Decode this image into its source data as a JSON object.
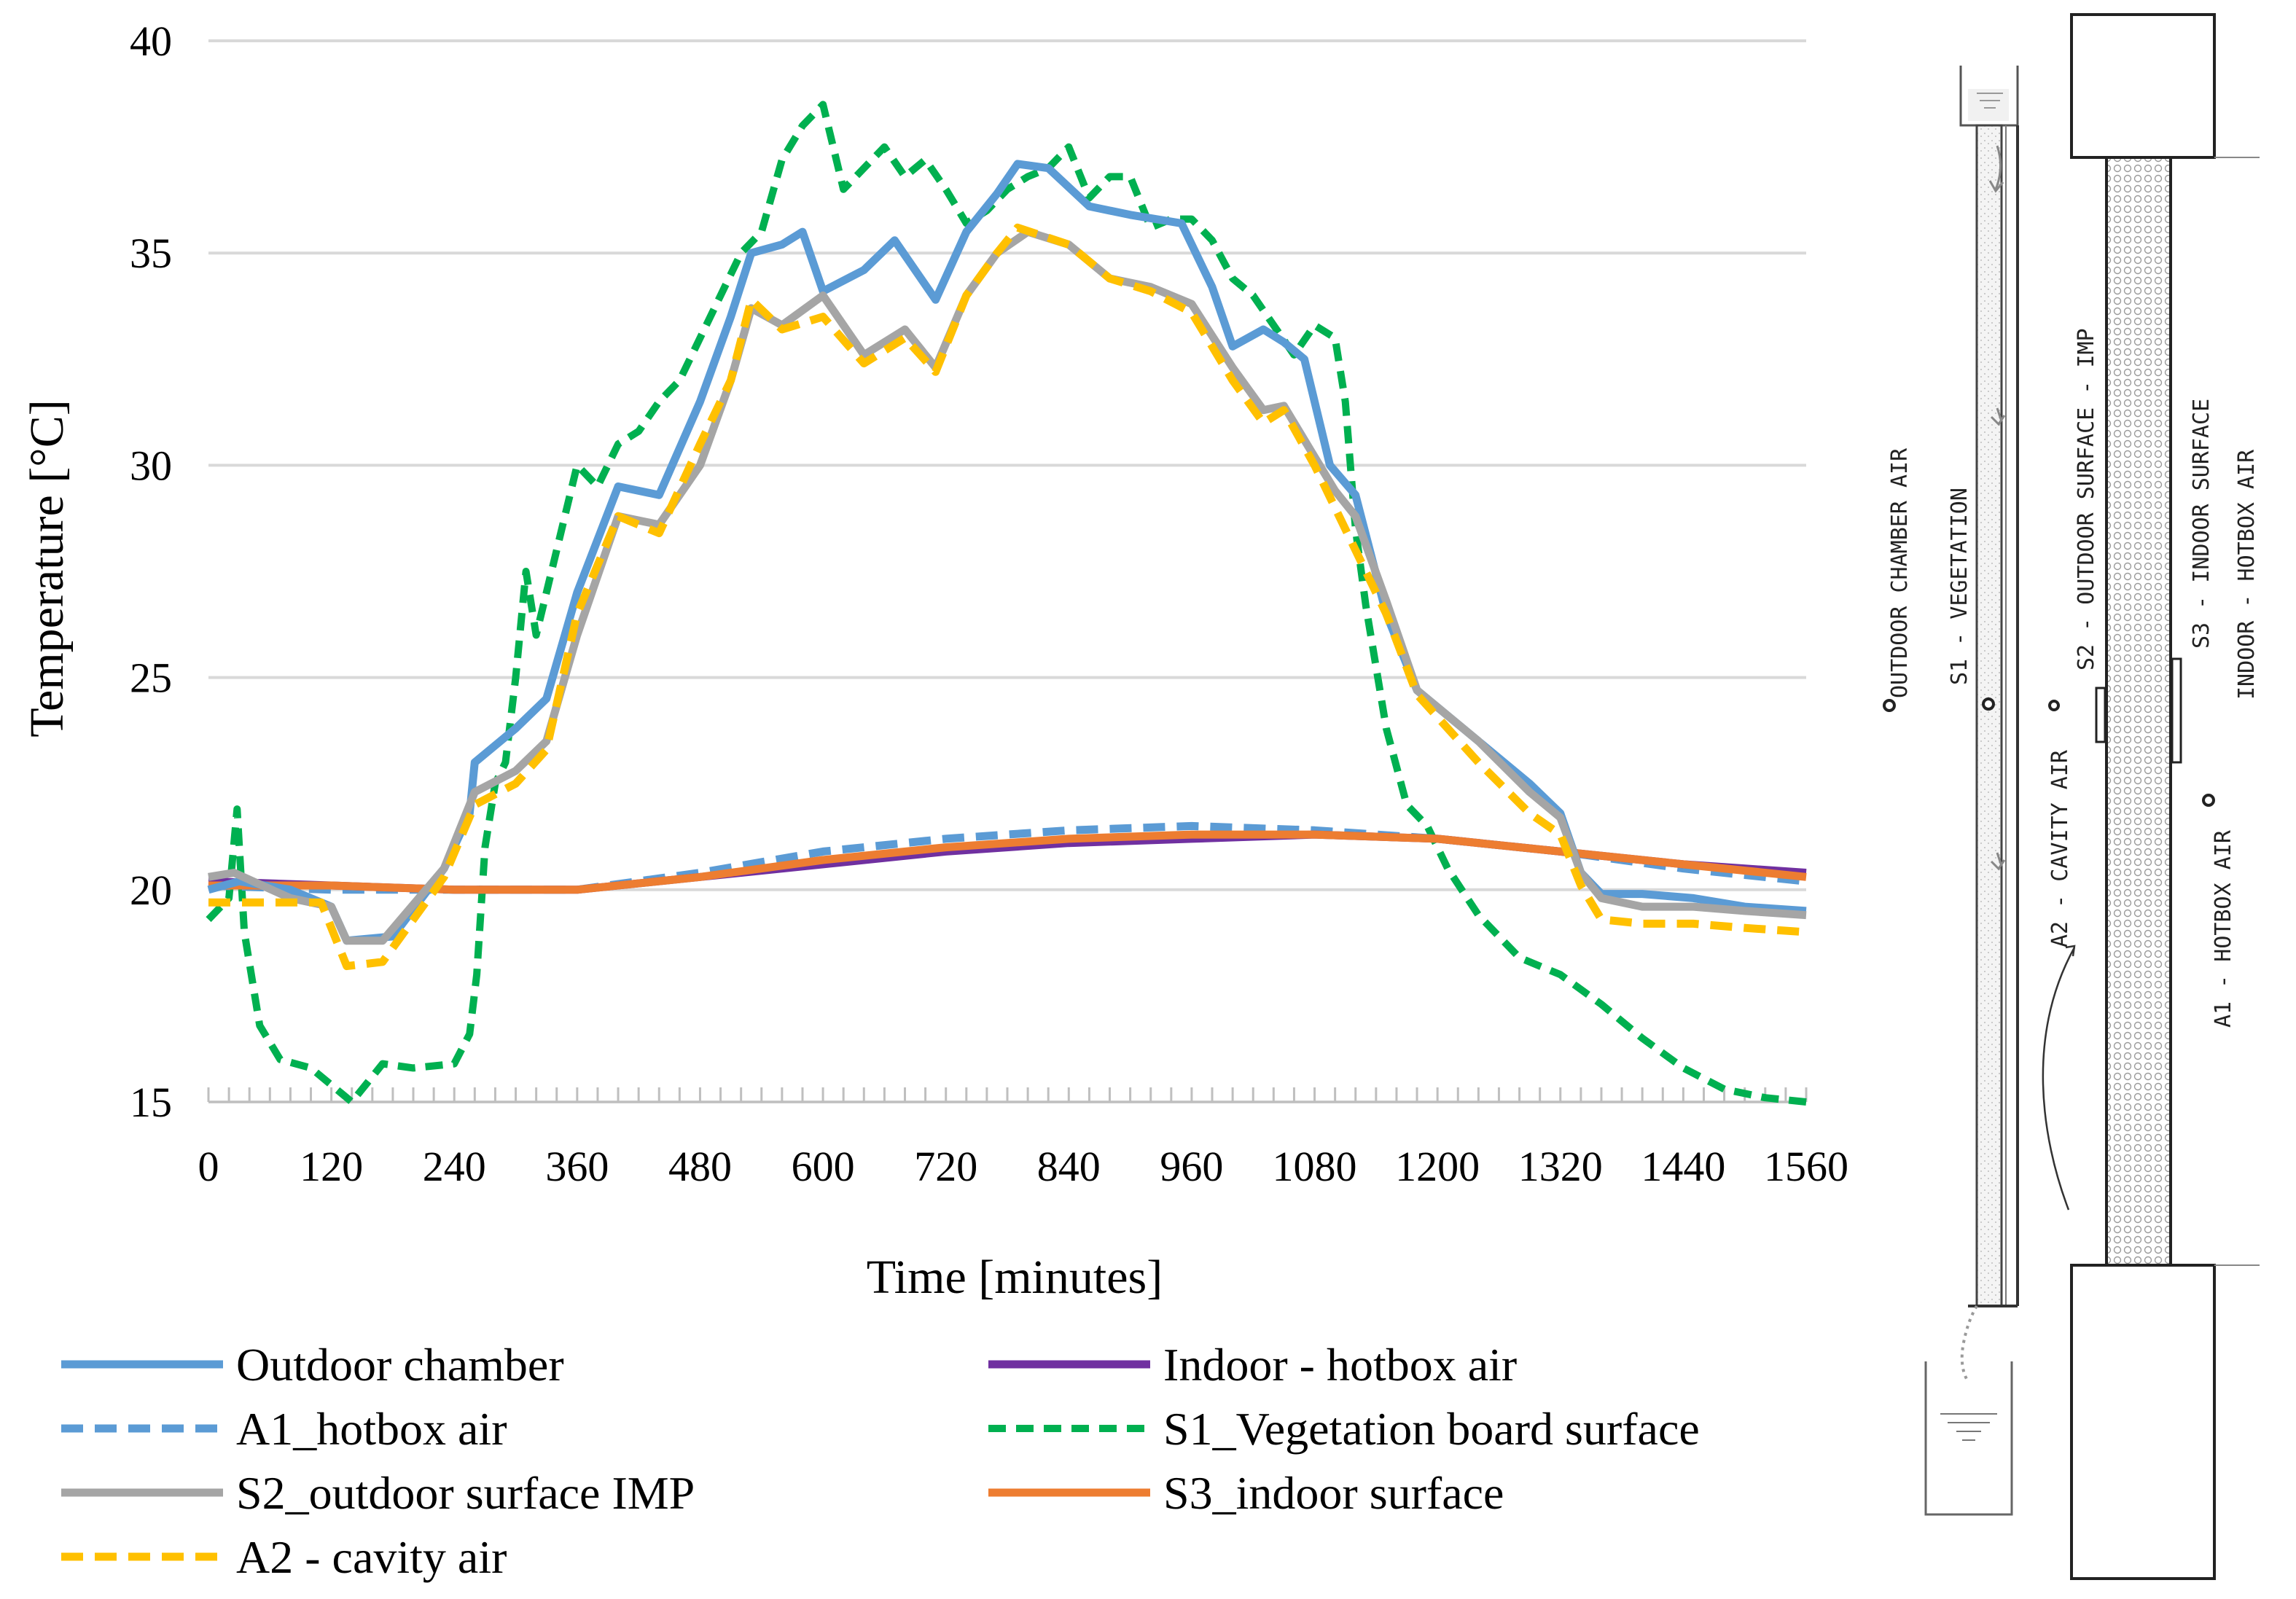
{
  "chart_data": {
    "type": "line",
    "xlabel": "Time [minutes]",
    "ylabel": "Temperature [°C]",
    "xlim": [
      0,
      1560
    ],
    "ylim": [
      15,
      40
    ],
    "xticks": [
      0,
      120,
      240,
      360,
      480,
      600,
      720,
      840,
      960,
      1080,
      1200,
      1320,
      1440,
      1560
    ],
    "yticks": [
      15,
      20,
      25,
      30,
      35,
      40
    ],
    "grid": "horizontal",
    "legend_position": "bottom",
    "series": [
      {
        "name": "Outdoor chamber",
        "color": "#5b9bd5",
        "dash": "solid",
        "points": [
          [
            0,
            20.0
          ],
          [
            30,
            20.2
          ],
          [
            80,
            20.0
          ],
          [
            120,
            19.6
          ],
          [
            135,
            18.8
          ],
          [
            180,
            18.9
          ],
          [
            230,
            20.5
          ],
          [
            255,
            21.8
          ],
          [
            260,
            23.0
          ],
          [
            300,
            23.8
          ],
          [
            330,
            24.5
          ],
          [
            360,
            27.0
          ],
          [
            400,
            29.5
          ],
          [
            440,
            29.3
          ],
          [
            480,
            31.5
          ],
          [
            510,
            33.5
          ],
          [
            530,
            35.0
          ],
          [
            560,
            35.2
          ],
          [
            580,
            35.5
          ],
          [
            600,
            34.1
          ],
          [
            640,
            34.6
          ],
          [
            670,
            35.3
          ],
          [
            710,
            33.9
          ],
          [
            740,
            35.5
          ],
          [
            770,
            36.4
          ],
          [
            790,
            37.1
          ],
          [
            820,
            37.0
          ],
          [
            860,
            36.1
          ],
          [
            900,
            35.9
          ],
          [
            950,
            35.7
          ],
          [
            980,
            34.2
          ],
          [
            1000,
            32.8
          ],
          [
            1030,
            33.2
          ],
          [
            1050,
            32.9
          ],
          [
            1070,
            32.5
          ],
          [
            1095,
            30.0
          ],
          [
            1120,
            29.3
          ],
          [
            1150,
            26.5
          ],
          [
            1180,
            24.7
          ],
          [
            1240,
            23.5
          ],
          [
            1290,
            22.5
          ],
          [
            1320,
            21.8
          ],
          [
            1340,
            20.4
          ],
          [
            1360,
            19.9
          ],
          [
            1400,
            19.9
          ],
          [
            1450,
            19.8
          ],
          [
            1500,
            19.6
          ],
          [
            1560,
            19.5
          ]
        ]
      },
      {
        "name": "A1_hotbox air",
        "color": "#5b9bd5",
        "dash": "dashed",
        "points": [
          [
            0,
            20.1
          ],
          [
            120,
            20.0
          ],
          [
            240,
            20.0
          ],
          [
            360,
            20.0
          ],
          [
            480,
            20.4
          ],
          [
            600,
            20.9
          ],
          [
            720,
            21.2
          ],
          [
            840,
            21.4
          ],
          [
            960,
            21.5
          ],
          [
            1080,
            21.4
          ],
          [
            1200,
            21.2
          ],
          [
            1320,
            20.9
          ],
          [
            1440,
            20.5
          ],
          [
            1560,
            20.2
          ]
        ]
      },
      {
        "name": "S2_outdoor surface IMP",
        "color": "#a5a5a5",
        "dash": "solid",
        "points": [
          [
            0,
            20.3
          ],
          [
            25,
            20.4
          ],
          [
            80,
            19.8
          ],
          [
            120,
            19.6
          ],
          [
            135,
            18.8
          ],
          [
            170,
            18.8
          ],
          [
            230,
            20.5
          ],
          [
            260,
            22.3
          ],
          [
            300,
            22.8
          ],
          [
            330,
            23.5
          ],
          [
            360,
            26.0
          ],
          [
            400,
            28.8
          ],
          [
            440,
            28.6
          ],
          [
            480,
            30.0
          ],
          [
            510,
            32.0
          ],
          [
            530,
            33.7
          ],
          [
            560,
            33.3
          ],
          [
            600,
            34.0
          ],
          [
            640,
            32.6
          ],
          [
            680,
            33.2
          ],
          [
            710,
            32.3
          ],
          [
            740,
            34.0
          ],
          [
            770,
            35.0
          ],
          [
            800,
            35.5
          ],
          [
            840,
            35.2
          ],
          [
            880,
            34.4
          ],
          [
            920,
            34.2
          ],
          [
            960,
            33.8
          ],
          [
            1000,
            32.3
          ],
          [
            1030,
            31.3
          ],
          [
            1050,
            31.4
          ],
          [
            1080,
            30.2
          ],
          [
            1100,
            29.4
          ],
          [
            1120,
            28.8
          ],
          [
            1150,
            26.8
          ],
          [
            1180,
            24.7
          ],
          [
            1240,
            23.5
          ],
          [
            1290,
            22.3
          ],
          [
            1320,
            21.7
          ],
          [
            1340,
            20.4
          ],
          [
            1360,
            19.8
          ],
          [
            1400,
            19.6
          ],
          [
            1450,
            19.6
          ],
          [
            1500,
            19.5
          ],
          [
            1560,
            19.4
          ]
        ]
      },
      {
        "name": "A2 - cavity air",
        "color": "#ffc000",
        "dash": "dashed",
        "points": [
          [
            0,
            19.7
          ],
          [
            60,
            19.7
          ],
          [
            110,
            19.7
          ],
          [
            135,
            18.2
          ],
          [
            170,
            18.3
          ],
          [
            230,
            20.3
          ],
          [
            260,
            22.0
          ],
          [
            300,
            22.5
          ],
          [
            330,
            23.3
          ],
          [
            360,
            26.5
          ],
          [
            400,
            28.8
          ],
          [
            440,
            28.4
          ],
          [
            480,
            30.5
          ],
          [
            510,
            32.0
          ],
          [
            530,
            33.9
          ],
          [
            560,
            33.2
          ],
          [
            600,
            33.5
          ],
          [
            640,
            32.4
          ],
          [
            680,
            33.0
          ],
          [
            710,
            32.2
          ],
          [
            740,
            34.0
          ],
          [
            770,
            35.0
          ],
          [
            790,
            35.6
          ],
          [
            840,
            35.2
          ],
          [
            880,
            34.4
          ],
          [
            920,
            34.1
          ],
          [
            960,
            33.6
          ],
          [
            1000,
            32.0
          ],
          [
            1030,
            31.0
          ],
          [
            1050,
            31.3
          ],
          [
            1080,
            30.0
          ],
          [
            1100,
            29.0
          ],
          [
            1120,
            28.0
          ],
          [
            1150,
            26.5
          ],
          [
            1180,
            24.6
          ],
          [
            1240,
            23.0
          ],
          [
            1290,
            21.8
          ],
          [
            1320,
            21.3
          ],
          [
            1340,
            20.1
          ],
          [
            1360,
            19.3
          ],
          [
            1400,
            19.2
          ],
          [
            1450,
            19.2
          ],
          [
            1500,
            19.1
          ],
          [
            1560,
            19.0
          ]
        ]
      },
      {
        "name": "Indoor - hotbox air",
        "color": "#7030a0",
        "dash": "solid",
        "points": [
          [
            0,
            20.2
          ],
          [
            120,
            20.1
          ],
          [
            240,
            20.0
          ],
          [
            360,
            20.0
          ],
          [
            480,
            20.3
          ],
          [
            600,
            20.6
          ],
          [
            720,
            20.9
          ],
          [
            840,
            21.1
          ],
          [
            960,
            21.2
          ],
          [
            1080,
            21.3
          ],
          [
            1200,
            21.2
          ],
          [
            1320,
            20.9
          ],
          [
            1440,
            20.6
          ],
          [
            1560,
            20.4
          ]
        ]
      },
      {
        "name": "S1_Vegetation board surface",
        "color": "#00b050",
        "dash": "dashed",
        "points": [
          [
            0,
            19.3
          ],
          [
            20,
            19.8
          ],
          [
            28,
            21.9
          ],
          [
            35,
            19.0
          ],
          [
            50,
            16.8
          ],
          [
            70,
            16.0
          ],
          [
            100,
            15.8
          ],
          [
            130,
            15.2
          ],
          [
            140,
            15.0
          ],
          [
            170,
            15.9
          ],
          [
            200,
            15.8
          ],
          [
            240,
            15.9
          ],
          [
            255,
            16.6
          ],
          [
            262,
            18.0
          ],
          [
            270,
            21.0
          ],
          [
            280,
            22.5
          ],
          [
            290,
            23.0
          ],
          [
            300,
            25.0
          ],
          [
            310,
            27.5
          ],
          [
            320,
            26.0
          ],
          [
            340,
            28.0
          ],
          [
            360,
            30.0
          ],
          [
            380,
            29.5
          ],
          [
            400,
            30.5
          ],
          [
            420,
            30.8
          ],
          [
            440,
            31.5
          ],
          [
            460,
            32.0
          ],
          [
            480,
            33.0
          ],
          [
            500,
            34.0
          ],
          [
            520,
            35.0
          ],
          [
            540,
            35.5
          ],
          [
            560,
            37.2
          ],
          [
            580,
            38.0
          ],
          [
            600,
            38.5
          ],
          [
            620,
            36.5
          ],
          [
            640,
            37.0
          ],
          [
            660,
            37.5
          ],
          [
            680,
            36.8
          ],
          [
            700,
            37.2
          ],
          [
            720,
            36.5
          ],
          [
            740,
            35.7
          ],
          [
            760,
            36.0
          ],
          [
            780,
            36.5
          ],
          [
            800,
            36.8
          ],
          [
            820,
            37.0
          ],
          [
            840,
            37.5
          ],
          [
            860,
            36.3
          ],
          [
            880,
            36.8
          ],
          [
            900,
            36.8
          ],
          [
            920,
            35.6
          ],
          [
            940,
            35.8
          ],
          [
            960,
            35.8
          ],
          [
            980,
            35.3
          ],
          [
            1000,
            34.4
          ],
          [
            1020,
            34.0
          ],
          [
            1040,
            33.3
          ],
          [
            1060,
            32.6
          ],
          [
            1080,
            33.3
          ],
          [
            1100,
            33.0
          ],
          [
            1110,
            31.5
          ],
          [
            1120,
            28.5
          ],
          [
            1130,
            26.7
          ],
          [
            1150,
            23.8
          ],
          [
            1170,
            22.0
          ],
          [
            1190,
            21.5
          ],
          [
            1210,
            20.5
          ],
          [
            1240,
            19.4
          ],
          [
            1280,
            18.4
          ],
          [
            1320,
            18.0
          ],
          [
            1360,
            17.3
          ],
          [
            1400,
            16.5
          ],
          [
            1440,
            15.8
          ],
          [
            1480,
            15.3
          ],
          [
            1520,
            15.1
          ],
          [
            1560,
            15.0
          ]
        ]
      },
      {
        "name": "S3_indoor surface",
        "color": "#ed7d31",
        "dash": "solid",
        "points": [
          [
            0,
            20.1
          ],
          [
            120,
            20.1
          ],
          [
            240,
            20.0
          ],
          [
            360,
            20.0
          ],
          [
            480,
            20.3
          ],
          [
            600,
            20.7
          ],
          [
            720,
            21.0
          ],
          [
            840,
            21.2
          ],
          [
            960,
            21.3
          ],
          [
            1080,
            21.3
          ],
          [
            1200,
            21.2
          ],
          [
            1320,
            20.9
          ],
          [
            1440,
            20.6
          ],
          [
            1560,
            20.3
          ]
        ]
      }
    ],
    "legend_order": [
      "Outdoor chamber",
      "Indoor - hotbox air",
      "A1_hotbox air",
      "S1_Vegetation board surface",
      "S2_outdoor surface IMP",
      "S3_indoor surface",
      "A2 - cavity air"
    ],
    "draw_order": [
      "S1_Vegetation board surface",
      "A1_hotbox air",
      "Indoor - hotbox air",
      "S3_indoor surface",
      "Outdoor chamber",
      "S2_outdoor surface IMP",
      "A2 - cavity air"
    ]
  },
  "diagram": {
    "labels": {
      "outdoor_chamber_air": "OUTDOOR CHAMBER AIR",
      "s1_vegetation": "S1 - VEGETATION",
      "a2_cavity_air": "A2 - CAVITY AIR",
      "s2_outdoor_surface": "S2 - OUTDOOR SURFACE - IMP",
      "a1_hotbox_air": "A1 - HOTBOX AIR",
      "s3_indoor_surface": "S3 - INDOOR SURFACE",
      "indoor_hotbox_air": "INDOOR - HOTBOX AIR"
    }
  }
}
